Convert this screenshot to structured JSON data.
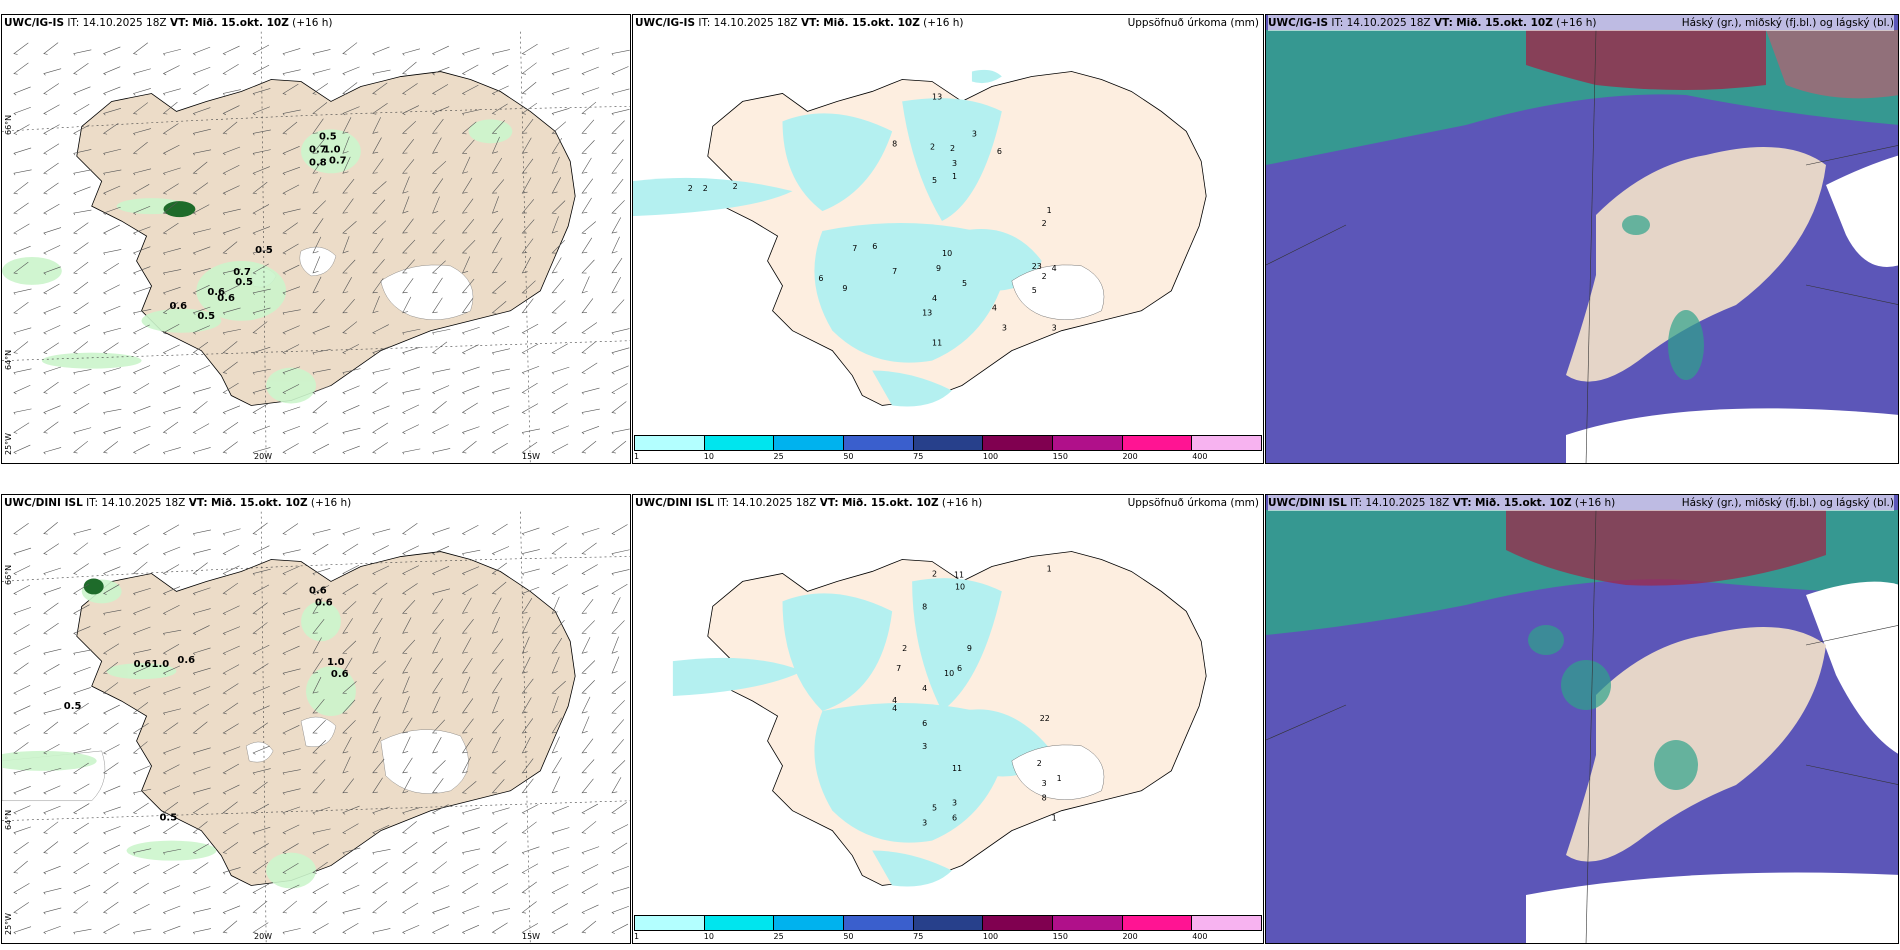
{
  "rows": [
    {
      "model": "UWC/IG-IS",
      "it": "IT: 14.10.2025 18Z",
      "vt_label": "VT:",
      "vt": "Mið. 15.okt. 10Z",
      "lead": "(+16 h)"
    },
    {
      "model": "UWC/DINI ISL",
      "it": "IT: 14.10.2025 18Z",
      "vt_label": "VT:",
      "vt": "Mið. 15.okt. 10Z",
      "lead": "(+16 h)"
    }
  ],
  "panel_titles": {
    "precip": "Uppsöfnuð úrkoma (mm)",
    "clouds": "Háský (gr.), miðský (fj.bl.) og lágský (bl.)"
  },
  "axes": {
    "lat_labels": [
      "66°N",
      "64°N",
      "25°W"
    ],
    "lon_labels": [
      "20W",
      "15W"
    ]
  },
  "colorbar": {
    "ticks": [
      "1",
      "10",
      "25",
      "50",
      "75",
      "100",
      "150",
      "200",
      "400"
    ],
    "colors": [
      "#b3ffff",
      "#00e5ee",
      "#00b2ee",
      "#3a5fcd",
      "#27408b",
      "#800050",
      "#b0108a",
      "#ff1493",
      "#f7b3f0"
    ]
  },
  "colors": {
    "land": "#ecdcc8",
    "land_precip": "#fdeee0",
    "precip_light": "#b4f0f0",
    "snow_cap": "#ffffff",
    "wind_precip": "#ccf5cc",
    "cloud_low": "#5c56b8",
    "cloud_mid": "#2fa38a",
    "cloud_high": "#9c2a4a"
  },
  "wind_labels": {
    "top": [
      "0.5",
      "0.7",
      "1.0",
      "0.8",
      "0.7",
      "0.5",
      "0.7",
      "0.5",
      "0.6",
      "0.6",
      "0.6",
      "0.5"
    ],
    "bottom": [
      "0.6",
      "0.6",
      "0.6",
      "1.0",
      "0.6",
      "1.0",
      "0.6",
      "0.5",
      "0.5"
    ]
  },
  "precip_labels": {
    "top": [
      "2",
      "2",
      "2",
      "13",
      "3",
      "8",
      "2",
      "2",
      "1",
      "6",
      "3",
      "5",
      "7",
      "6",
      "10",
      "9",
      "4",
      "13",
      "5",
      "4",
      "3",
      "11",
      "2",
      "4",
      "5",
      "23",
      "7",
      "6",
      "9",
      "2",
      "1",
      "3"
    ],
    "bottom": [
      "2",
      "11",
      "10",
      "8",
      "1",
      "4",
      "9",
      "6",
      "10",
      "22",
      "11",
      "3",
      "5",
      "6",
      "3",
      "4",
      "7",
      "2",
      "4",
      "6",
      "3",
      "1",
      "2",
      "1",
      "3",
      "8"
    ]
  }
}
